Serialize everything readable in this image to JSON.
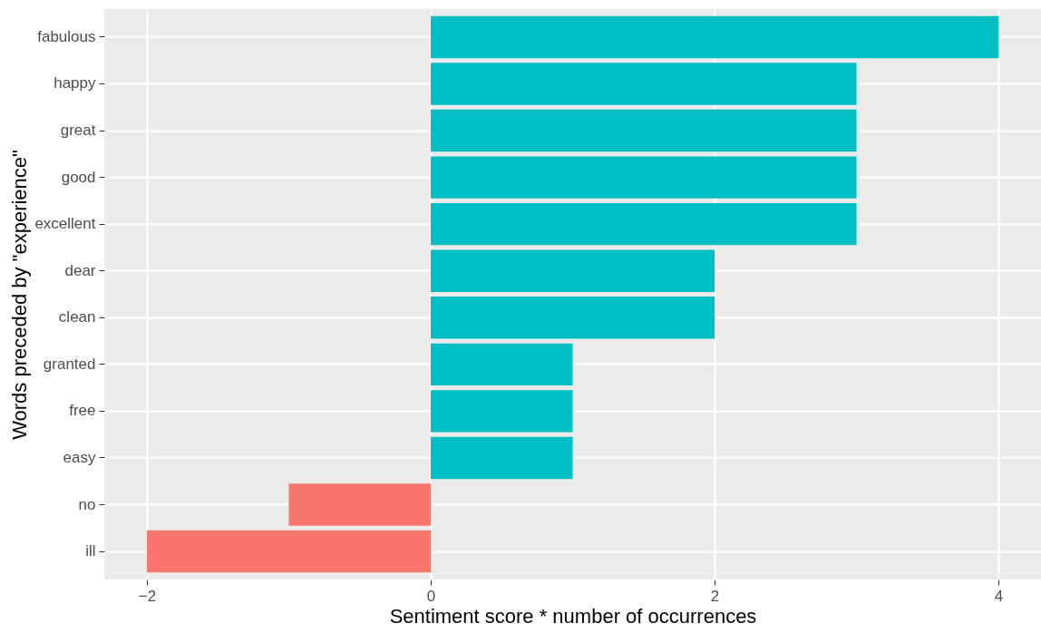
{
  "chart_data": {
    "type": "bar",
    "orientation": "horizontal",
    "xlabel": "Sentiment score * number of occurrences",
    "ylabel": "Words preceded by \"experience\"",
    "categories": [
      "fabulous",
      "happy",
      "great",
      "good",
      "excellent",
      "dear",
      "clean",
      "granted",
      "free",
      "easy",
      "no",
      "ill"
    ],
    "values": [
      4,
      3,
      3,
      3,
      3,
      2,
      2,
      1,
      1,
      1,
      -1,
      -2
    ],
    "colors": [
      "#00bfc4",
      "#00bfc4",
      "#00bfc4",
      "#00bfc4",
      "#00bfc4",
      "#00bfc4",
      "#00bfc4",
      "#00bfc4",
      "#00bfc4",
      "#00bfc4",
      "#f8766d",
      "#f8766d"
    ],
    "xlim": [
      -2.3,
      4.3
    ],
    "xticks": [
      -2,
      0,
      2,
      4
    ],
    "grid": true
  }
}
